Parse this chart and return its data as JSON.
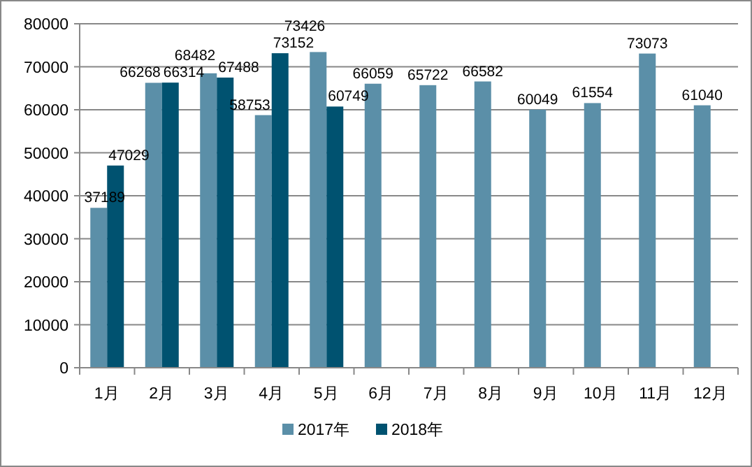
{
  "chart_data": {
    "type": "bar",
    "categories": [
      "1月",
      "2月",
      "3月",
      "4月",
      "5月",
      "6月",
      "7月",
      "8月",
      "9月",
      "10月",
      "11月",
      "12月"
    ],
    "series": [
      {
        "name": "2017年",
        "color": "#5b8fa8",
        "values": [
          37189,
          66268,
          68482,
          58753,
          73426,
          66059,
          65722,
          66582,
          60049,
          61554,
          73073,
          61040
        ]
      },
      {
        "name": "2018年",
        "color": "#005270",
        "values": [
          47029,
          66314,
          67488,
          73152,
          60749,
          null,
          null,
          null,
          null,
          null,
          null,
          null
        ]
      }
    ],
    "ylim": [
      0,
      80000
    ],
    "yticks": [
      0,
      10000,
      20000,
      30000,
      40000,
      50000,
      60000,
      70000,
      80000
    ],
    "grid": "y",
    "legend": "bottom",
    "data_labels": true
  }
}
